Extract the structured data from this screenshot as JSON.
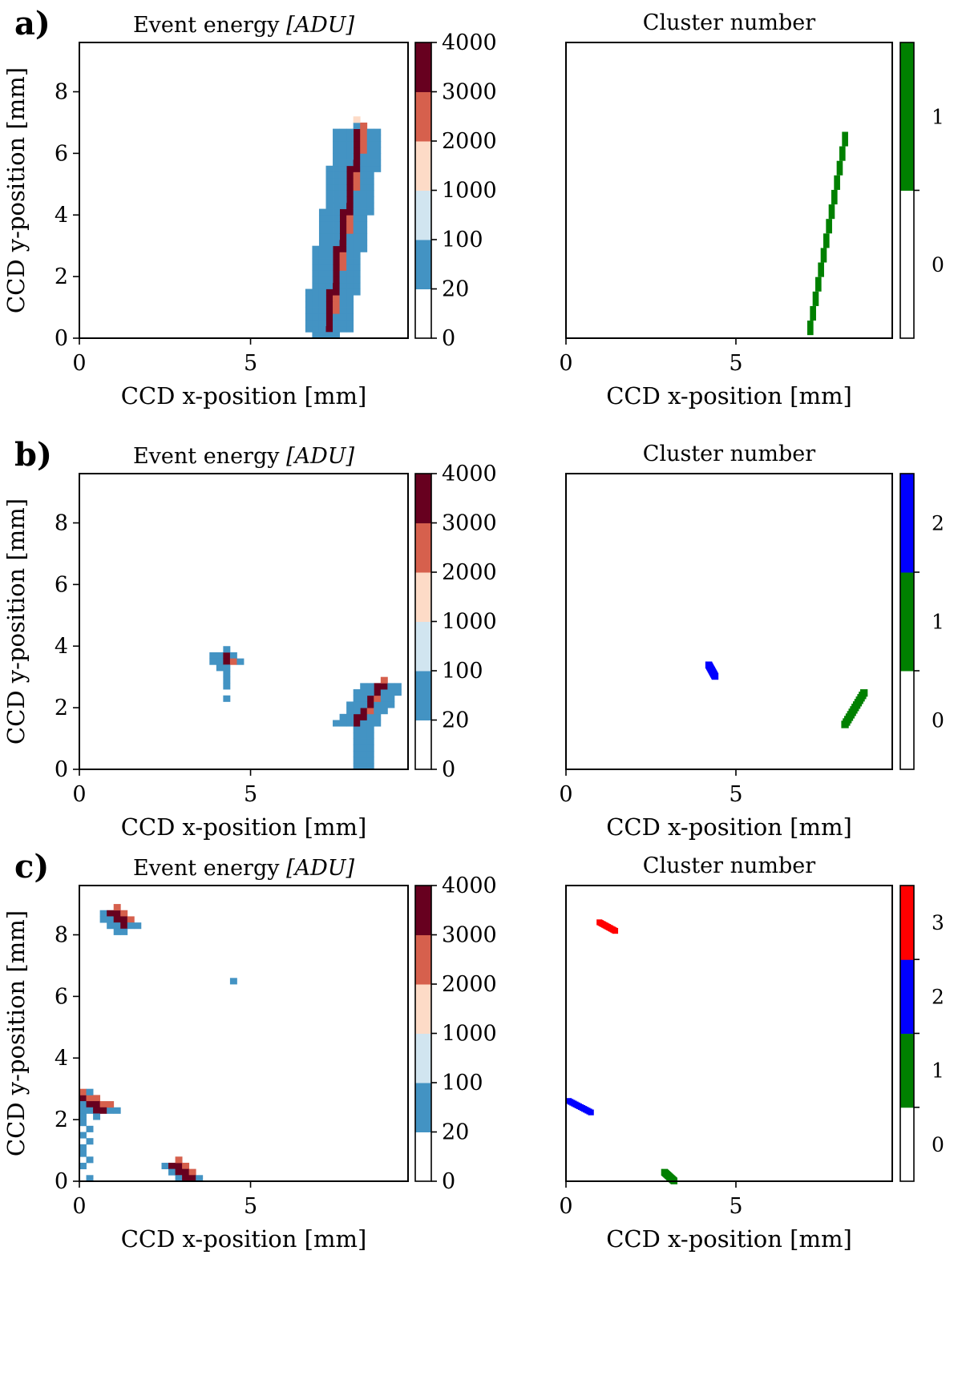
{
  "panels": [
    {
      "label": "a)",
      "energy": {
        "title_prefix": "Event energy ",
        "title_unit": "[ADU]",
        "xlabel": "CCD x-position [mm]",
        "ylabel": "CCD y-position [mm]",
        "xticks": [
          "0",
          "5"
        ],
        "yticks": [
          "0",
          "2",
          "4",
          "6",
          "8"
        ],
        "colorbar_labels": [
          "0",
          "20",
          "100",
          "1000",
          "2000",
          "3000",
          "4000"
        ]
      },
      "cluster": {
        "title": "Cluster number",
        "xlabel": "CCD x-position [mm]",
        "xticks": [
          "0",
          "5"
        ],
        "colorbar_labels": [
          "0",
          "1"
        ]
      }
    },
    {
      "label": "b)",
      "energy": {
        "title_prefix": "Event energy ",
        "title_unit": "[ADU]",
        "xlabel": "CCD x-position [mm]",
        "ylabel": "CCD y-position [mm]",
        "xticks": [
          "0",
          "5"
        ],
        "yticks": [
          "0",
          "2",
          "4",
          "6",
          "8"
        ],
        "colorbar_labels": [
          "0",
          "20",
          "100",
          "1000",
          "2000",
          "3000",
          "4000"
        ]
      },
      "cluster": {
        "title": "Cluster number",
        "xlabel": "CCD x-position [mm]",
        "xticks": [
          "0",
          "5"
        ],
        "colorbar_labels": [
          "0",
          "1",
          "2"
        ]
      }
    },
    {
      "label": "c)",
      "energy": {
        "title_prefix": "Event energy ",
        "title_unit": "[ADU]",
        "xlabel": "CCD x-position [mm]",
        "ylabel": "CCD y-position [mm]",
        "xticks": [
          "0",
          "5"
        ],
        "yticks": [
          "0",
          "2",
          "4",
          "6",
          "8"
        ],
        "colorbar_labels": [
          "0",
          "20",
          "100",
          "1000",
          "2000",
          "3000",
          "4000"
        ]
      },
      "cluster": {
        "title": "Cluster number",
        "xlabel": "CCD x-position [mm]",
        "xticks": [
          "0",
          "5"
        ],
        "colorbar_labels": [
          "0",
          "1",
          "2",
          "3"
        ]
      }
    }
  ],
  "chart_data": [
    {
      "panel": "a)",
      "type": "heatmap",
      "title": "Event energy [ADU]",
      "xlabel": "CCD x-position [mm]",
      "ylabel": "CCD y-position [mm]",
      "xlim": [
        0,
        9.6
      ],
      "ylim": [
        0,
        9.6
      ],
      "pixel_mm": 0.2,
      "colorbar_bounds": [
        0,
        20,
        100,
        1000,
        2000,
        3000,
        4000
      ],
      "colors": [
        "#ffffff",
        "#4393c3",
        "#d1e5f0",
        "#fddbc7",
        "#d6604d",
        "#67001f"
      ],
      "features": [
        {
          "kind": "track",
          "from": [
            7.2,
            0.2
          ],
          "to": [
            8.2,
            6.8
          ],
          "core_energy": 3800,
          "halo_energy": 50,
          "halo_width_mm": 0.6
        },
        {
          "kind": "pixels",
          "points": [
            [
              6.9,
              0.3
            ],
            [
              7.3,
              0.0
            ],
            [
              7.8,
              0.5
            ],
            [
              7.6,
              0.9
            ],
            [
              6.9,
              0.0
            ],
            [
              7.5,
              0.1
            ]
          ],
          "energy": 50
        },
        {
          "kind": "pixels",
          "points": [
            [
              8.2,
              7.0
            ],
            [
              8.25,
              6.9
            ]
          ],
          "energy": 1500
        }
      ]
    },
    {
      "panel": "a)",
      "type": "heatmap",
      "title": "Cluster number",
      "xlabel": "CCD x-position [mm]",
      "xlim": [
        0,
        9.6
      ],
      "ylim": [
        0,
        9.6
      ],
      "colorbar_ticks": [
        0,
        1
      ],
      "colors": [
        "#ffffff",
        "#008000"
      ],
      "clusters": [
        {
          "id": 1,
          "path": [
            [
              7.1,
              0.1
            ],
            [
              8.2,
              6.7
            ]
          ],
          "width_mm": 0.18
        }
      ]
    },
    {
      "panel": "b)",
      "type": "heatmap",
      "title": "Event energy [ADU]",
      "xlabel": "CCD x-position [mm]",
      "ylabel": "CCD y-position [mm]",
      "xlim": [
        0,
        9.6
      ],
      "ylim": [
        0,
        9.6
      ],
      "pixel_mm": 0.2,
      "colorbar_bounds": [
        0,
        20,
        100,
        1000,
        2000,
        3000,
        4000
      ],
      "colors": [
        "#ffffff",
        "#4393c3",
        "#d1e5f0",
        "#fddbc7",
        "#d6604d",
        "#67001f"
      ],
      "features": [
        {
          "kind": "track",
          "from": [
            4.2,
            3.6
          ],
          "to": [
            4.35,
            3.4
          ],
          "core_energy": 3800,
          "halo_energy": 50,
          "halo_width_mm": 0.3
        },
        {
          "kind": "pixels",
          "points": [
            [
              4.2,
              3.1
            ],
            [
              4.35,
              2.9
            ],
            [
              4.3,
              2.7
            ],
            [
              4.3,
              2.3
            ],
            [
              4.2,
              3.3
            ]
          ],
          "energy": 50
        },
        {
          "kind": "block",
          "x": [
            8.0,
            8.7
          ],
          "y": [
            0.0,
            1.8
          ],
          "energy": 50
        },
        {
          "kind": "track",
          "from": [
            8.1,
            1.5
          ],
          "to": [
            8.8,
            2.7
          ],
          "core_energy": 3800,
          "halo_energy": 50,
          "halo_width_mm": 0.5
        }
      ]
    },
    {
      "panel": "b)",
      "type": "heatmap",
      "title": "Cluster number",
      "xlabel": "CCD x-position [mm]",
      "xlim": [
        0,
        9.6
      ],
      "ylim": [
        0,
        9.6
      ],
      "colorbar_ticks": [
        0,
        1,
        2
      ],
      "colors": [
        "#ffffff",
        "#008000",
        "#0000ff"
      ],
      "clusters": [
        {
          "id": 2,
          "path": [
            [
              4.1,
              3.5
            ],
            [
              4.3,
              3.1
            ]
          ],
          "width_mm": 0.2
        },
        {
          "id": 1,
          "path": [
            [
              8.1,
              1.5
            ],
            [
              8.7,
              2.6
            ]
          ],
          "width_mm": 0.22
        }
      ]
    },
    {
      "panel": "c)",
      "type": "heatmap",
      "title": "Event energy [ADU]",
      "xlabel": "CCD x-position [mm]",
      "ylabel": "CCD y-position [mm]",
      "xlim": [
        0,
        9.6
      ],
      "ylim": [
        0,
        9.6
      ],
      "pixel_mm": 0.2,
      "colorbar_bounds": [
        0,
        20,
        100,
        1000,
        2000,
        3000,
        4000
      ],
      "colors": [
        "#ffffff",
        "#4393c3",
        "#d1e5f0",
        "#fddbc7",
        "#d6604d",
        "#67001f"
      ],
      "features": [
        {
          "kind": "track",
          "from": [
            0.9,
            8.7
          ],
          "to": [
            1.4,
            8.3
          ],
          "core_energy": 3800,
          "halo_energy": 50,
          "halo_width_mm": 0.3
        },
        {
          "kind": "pixels",
          "points": [
            [
              4.4,
              6.4
            ]
          ],
          "energy": 50
        },
        {
          "kind": "track",
          "from": [
            0.0,
            2.7
          ],
          "to": [
            0.7,
            2.3
          ],
          "core_energy": 3800,
          "halo_energy": 50,
          "halo_width_mm": 0.3
        },
        {
          "kind": "pixels",
          "points": [
            [
              0.1,
              2.1
            ],
            [
              0.1,
              1.9
            ],
            [
              0.2,
              1.7
            ],
            [
              0.1,
              1.5
            ],
            [
              0.2,
              1.3
            ],
            [
              0.1,
              1.1
            ],
            [
              0.0,
              0.9
            ],
            [
              0.2,
              0.7
            ],
            [
              0.1,
              0.4
            ],
            [
              0.2,
              0.0
            ],
            [
              0.3,
              2.2
            ],
            [
              0.9,
              2.2
            ]
          ],
          "energy": 50
        },
        {
          "kind": "track",
          "from": [
            2.8,
            0.5
          ],
          "to": [
            3.2,
            0.1
          ],
          "core_energy": 3800,
          "halo_energy": 50,
          "halo_width_mm": 0.3
        }
      ]
    },
    {
      "panel": "c)",
      "type": "heatmap",
      "title": "Cluster number",
      "xlabel": "CCD x-position [mm]",
      "xlim": [
        0,
        9.6
      ],
      "ylim": [
        0,
        9.6
      ],
      "colorbar_ticks": [
        0,
        1,
        2,
        3
      ],
      "colors": [
        "#ffffff",
        "#008000",
        "#0000ff",
        "#ff0000"
      ],
      "clusters": [
        {
          "id": 3,
          "path": [
            [
              0.9,
              8.5
            ],
            [
              1.4,
              8.2
            ]
          ],
          "width_mm": 0.17
        },
        {
          "id": 2,
          "path": [
            [
              0.0,
              2.7
            ],
            [
              0.7,
              2.3
            ]
          ],
          "width_mm": 0.17
        },
        {
          "id": 1,
          "path": [
            [
              2.8,
              0.4
            ],
            [
              3.1,
              0.1
            ]
          ],
          "width_mm": 0.2
        }
      ]
    }
  ]
}
